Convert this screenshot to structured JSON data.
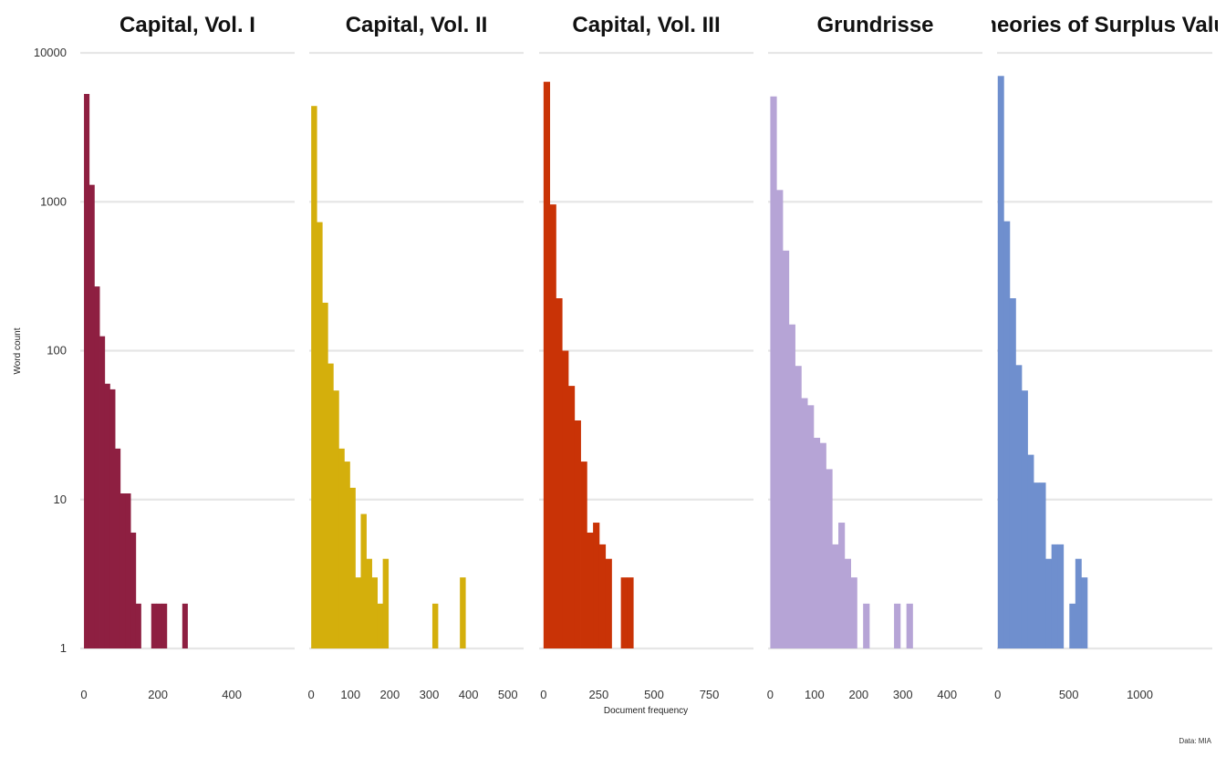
{
  "chart_data": {
    "type": "bar",
    "facet_layout": "1 row of 5 panels, shared log-scale y axis",
    "ylabel": "Word count",
    "xlabel": "Document frequency",
    "caption": "Data: MIA",
    "y_scale": "log10",
    "ylim": [
      1,
      10000
    ],
    "y_ticks": [
      1,
      10,
      100,
      1000,
      10000
    ],
    "y_tick_labels": [
      "1",
      "10",
      "100",
      "1000",
      "10000"
    ],
    "grid": "horizontal major gridlines only",
    "panels": [
      {
        "title": "Capital, Vol. I",
        "color": "#8e1f41",
        "xlim": [
          -10,
          570
        ],
        "x_ticks": [
          0,
          200,
          400
        ],
        "x_tick_labels": [
          "0",
          "200",
          "400"
        ],
        "bin_width": 14,
        "bins": [
          {
            "x0": 0,
            "count": 5300
          },
          {
            "x0": 14,
            "count": 1300
          },
          {
            "x0": 28,
            "count": 270
          },
          {
            "x0": 42,
            "count": 125
          },
          {
            "x0": 56,
            "count": 60
          },
          {
            "x0": 70,
            "count": 55
          },
          {
            "x0": 84,
            "count": 22
          },
          {
            "x0": 98,
            "count": 11
          },
          {
            "x0": 112,
            "count": 11
          },
          {
            "x0": 126,
            "count": 6
          },
          {
            "x0": 140,
            "count": 2
          },
          {
            "x0": 182,
            "count": 2
          },
          {
            "x0": 196,
            "count": 2
          },
          {
            "x0": 210,
            "count": 2
          },
          {
            "x0": 266,
            "count": 2
          }
        ]
      },
      {
        "title": "Capital, Vol. II",
        "color": "#d4af0c",
        "xlim": [
          -5,
          540
        ],
        "x_ticks": [
          0,
          100,
          200,
          300,
          400,
          500
        ],
        "x_tick_labels": [
          "0",
          "100",
          "200",
          "300",
          "400",
          "500"
        ],
        "bin_width": 14,
        "bins": [
          {
            "x0": 0,
            "count": 4400
          },
          {
            "x0": 14,
            "count": 730
          },
          {
            "x0": 28,
            "count": 210
          },
          {
            "x0": 42,
            "count": 82
          },
          {
            "x0": 56,
            "count": 54
          },
          {
            "x0": 70,
            "count": 22
          },
          {
            "x0": 84,
            "count": 18
          },
          {
            "x0": 98,
            "count": 12
          },
          {
            "x0": 112,
            "count": 3
          },
          {
            "x0": 126,
            "count": 8
          },
          {
            "x0": 140,
            "count": 4
          },
          {
            "x0": 154,
            "count": 3
          },
          {
            "x0": 168,
            "count": 2
          },
          {
            "x0": 182,
            "count": 4
          },
          {
            "x0": 308,
            "count": 2
          },
          {
            "x0": 378,
            "count": 3
          }
        ]
      },
      {
        "title": "Capital, Vol. III",
        "color": "#c93306",
        "xlim": [
          -20,
          950
        ],
        "x_ticks": [
          0,
          250,
          500,
          750
        ],
        "x_tick_labels": [
          "0",
          "250",
          "500",
          "750"
        ],
        "bin_width": 28,
        "bins": [
          {
            "x0": 0,
            "count": 6400
          },
          {
            "x0": 28,
            "count": 960
          },
          {
            "x0": 56,
            "count": 225
          },
          {
            "x0": 84,
            "count": 100
          },
          {
            "x0": 112,
            "count": 58
          },
          {
            "x0": 140,
            "count": 34
          },
          {
            "x0": 168,
            "count": 18
          },
          {
            "x0": 196,
            "count": 6
          },
          {
            "x0": 224,
            "count": 7
          },
          {
            "x0": 252,
            "count": 5
          },
          {
            "x0": 280,
            "count": 4
          },
          {
            "x0": 350,
            "count": 3
          },
          {
            "x0": 378,
            "count": 3
          }
        ]
      },
      {
        "title": "Grundrisse",
        "color": "#b6a4d6",
        "xlim": [
          -5,
          480
        ],
        "x_ticks": [
          0,
          100,
          200,
          300,
          400
        ],
        "x_tick_labels": [
          "0",
          "100",
          "200",
          "300",
          "400"
        ],
        "bin_width": 14,
        "bins": [
          {
            "x0": 0,
            "count": 5100
          },
          {
            "x0": 14,
            "count": 1200
          },
          {
            "x0": 28,
            "count": 470
          },
          {
            "x0": 42,
            "count": 150
          },
          {
            "x0": 56,
            "count": 79
          },
          {
            "x0": 70,
            "count": 48
          },
          {
            "x0": 84,
            "count": 43
          },
          {
            "x0": 98,
            "count": 26
          },
          {
            "x0": 112,
            "count": 24
          },
          {
            "x0": 126,
            "count": 16
          },
          {
            "x0": 140,
            "count": 5
          },
          {
            "x0": 154,
            "count": 7
          },
          {
            "x0": 168,
            "count": 4
          },
          {
            "x0": 182,
            "count": 3
          },
          {
            "x0": 210,
            "count": 2
          },
          {
            "x0": 280,
            "count": 2
          },
          {
            "x0": 308,
            "count": 2
          }
        ]
      },
      {
        "title": "Theories of Surplus Value",
        "color": "#6f8fce",
        "xlim": [
          -5,
          1510
        ],
        "x_ticks": [
          0,
          500,
          1000
        ],
        "x_tick_labels": [
          "0",
          "500",
          "1000"
        ],
        "bin_width": 42,
        "bins": [
          {
            "x0": 0,
            "count": 7000
          },
          {
            "x0": 42,
            "count": 740
          },
          {
            "x0": 84,
            "count": 225
          },
          {
            "x0": 126,
            "count": 80
          },
          {
            "x0": 168,
            "count": 54
          },
          {
            "x0": 210,
            "count": 20
          },
          {
            "x0": 252,
            "count": 13
          },
          {
            "x0": 294,
            "count": 13
          },
          {
            "x0": 336,
            "count": 4
          },
          {
            "x0": 378,
            "count": 5
          },
          {
            "x0": 420,
            "count": 5
          },
          {
            "x0": 504,
            "count": 2
          },
          {
            "x0": 546,
            "count": 4
          },
          {
            "x0": 588,
            "count": 3
          }
        ]
      }
    ]
  }
}
